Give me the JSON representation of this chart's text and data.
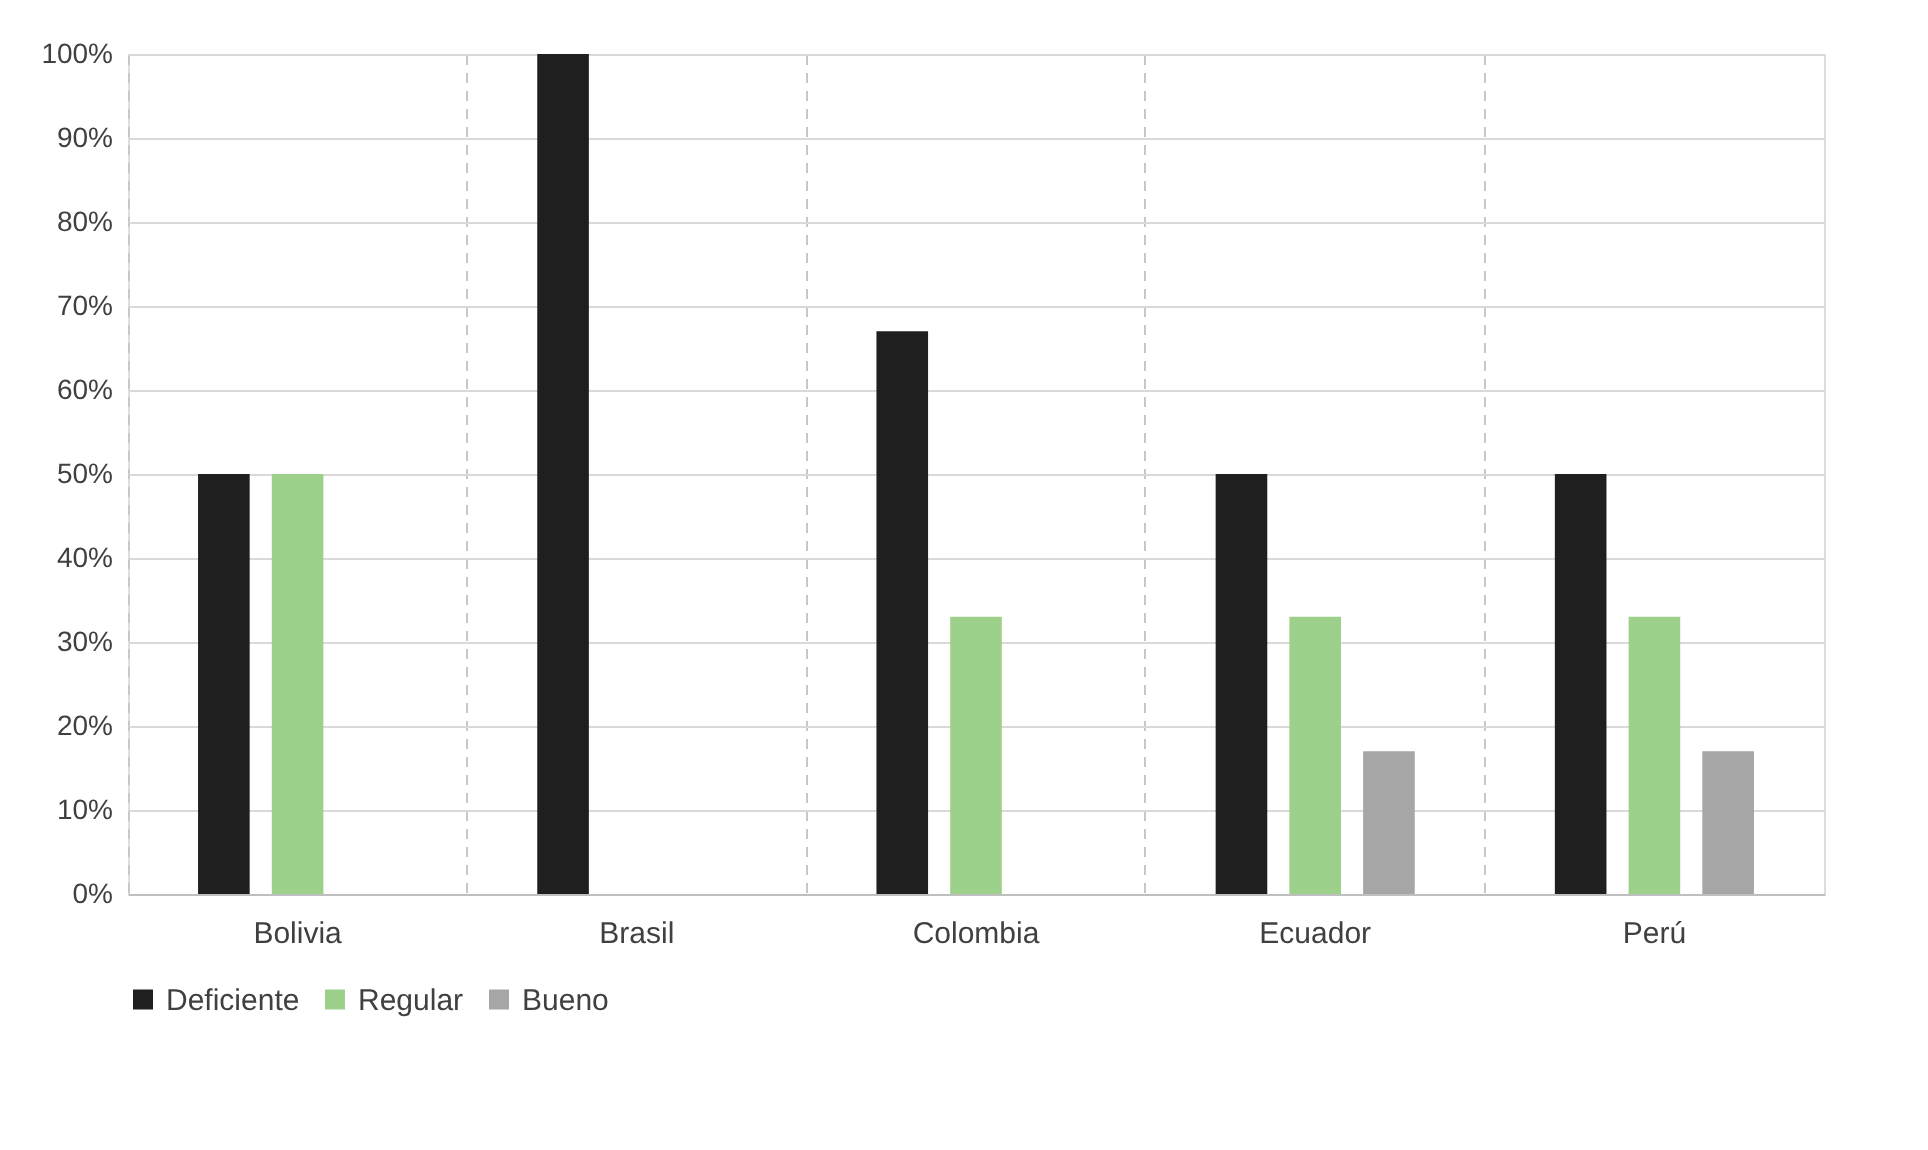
{
  "chart_data": {
    "type": "bar",
    "categories": [
      "Bolivia",
      "Brasil",
      "Colombia",
      "Ecuador",
      "Perú"
    ],
    "series": [
      {
        "name": "Deficiente",
        "color": "#1f1f1f",
        "values": [
          50,
          100,
          67,
          50,
          50
        ]
      },
      {
        "name": "Regular",
        "color": "#9dd08a",
        "values": [
          50,
          null,
          33,
          33,
          33
        ]
      },
      {
        "name": "Bueno",
        "color": "#a6a6a6",
        "values": [
          null,
          null,
          null,
          17,
          17
        ]
      }
    ],
    "ylim": [
      0,
      100
    ],
    "yticks": [
      {
        "value": 0,
        "label": "0%"
      },
      {
        "value": 10,
        "label": "10%"
      },
      {
        "value": 20,
        "label": "20%"
      },
      {
        "value": 30,
        "label": "30%"
      },
      {
        "value": 40,
        "label": "40%"
      },
      {
        "value": 50,
        "label": "50%"
      },
      {
        "value": 60,
        "label": "60%"
      },
      {
        "value": 70,
        "label": "70%"
      },
      {
        "value": 80,
        "label": "80%"
      },
      {
        "value": 90,
        "label": "90%"
      },
      {
        "value": 100,
        "label": "100%"
      }
    ],
    "grid": true,
    "legend": "bottom"
  }
}
